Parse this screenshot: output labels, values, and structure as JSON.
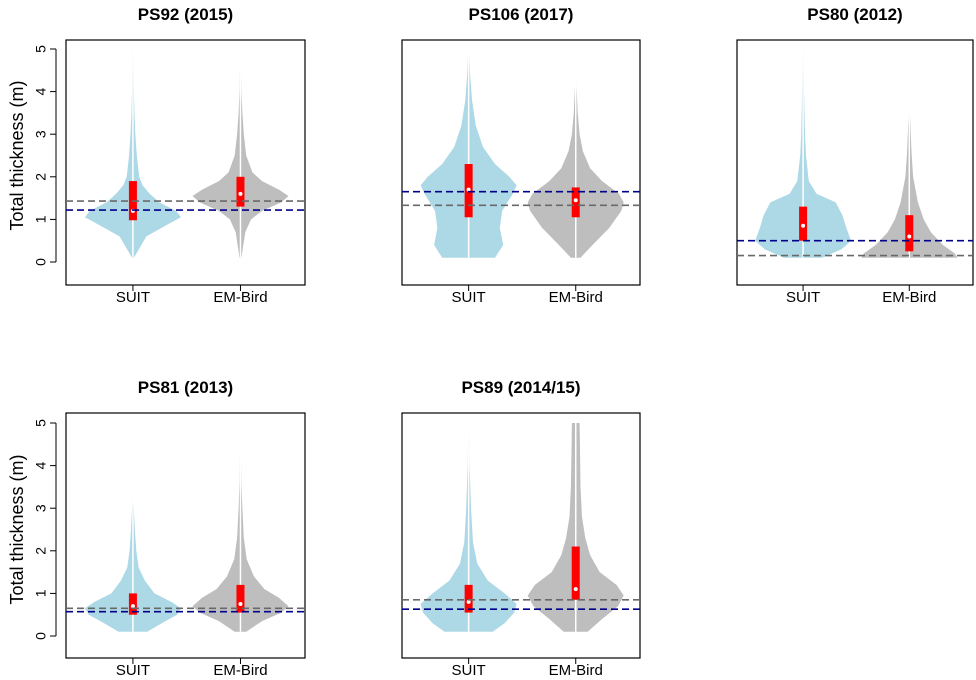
{
  "colors": {
    "suit_fill": "#add8e6",
    "embird_fill": "#bebebe",
    "box_fill": "#ff0000",
    "whisker": "#ffffff",
    "median_point": "#ffffff",
    "line_blue": "#00008b",
    "line_gray": "#696969"
  },
  "chart_data": [
    {
      "type": "violin",
      "title": "PS92 (2015)",
      "ylabel": "Total thickness (m)",
      "ylim": [
        0,
        5
      ],
      "yticks": [
        0,
        1,
        2,
        3,
        4,
        5
      ],
      "show_yaxis": true,
      "categories": [
        "SUIT",
        "EM-Bird"
      ],
      "series": [
        {
          "name": "SUIT",
          "min": 0.1,
          "max": 5.0,
          "q1": 0.98,
          "median": 1.2,
          "q3": 1.9,
          "density": [
            [
              0.1,
              0.02
            ],
            [
              0.6,
              0.28
            ],
            [
              0.9,
              0.75
            ],
            [
              1.05,
              1.0
            ],
            [
              1.2,
              0.9
            ],
            [
              1.4,
              0.55
            ],
            [
              1.6,
              0.35
            ],
            [
              1.8,
              0.2
            ],
            [
              2.0,
              0.13
            ],
            [
              2.5,
              0.08
            ],
            [
              3.0,
              0.05
            ],
            [
              3.5,
              0.03
            ],
            [
              4.0,
              0.02
            ],
            [
              5.0,
              0.01
            ]
          ]
        },
        {
          "name": "EM-Bird",
          "min": 0.1,
          "max": 4.6,
          "q1": 1.3,
          "median": 1.6,
          "q3": 2.0,
          "density": [
            [
              0.1,
              0.02
            ],
            [
              0.7,
              0.1
            ],
            [
              1.0,
              0.22
            ],
            [
              1.2,
              0.45
            ],
            [
              1.4,
              0.85
            ],
            [
              1.55,
              1.0
            ],
            [
              1.7,
              0.8
            ],
            [
              1.9,
              0.45
            ],
            [
              2.1,
              0.25
            ],
            [
              2.5,
              0.12
            ],
            [
              3.0,
              0.07
            ],
            [
              3.5,
              0.04
            ],
            [
              4.0,
              0.02
            ],
            [
              4.6,
              0.01
            ]
          ]
        }
      ],
      "hlines": [
        {
          "color": "line_gray",
          "y": 1.43
        },
        {
          "color": "line_blue",
          "y": 1.22
        }
      ]
    },
    {
      "type": "violin",
      "title": "PS106 (2017)",
      "ylabel": "",
      "ylim": [
        0,
        5
      ],
      "yticks": [
        0,
        1,
        2,
        3,
        4,
        5
      ],
      "show_yaxis": false,
      "categories": [
        "SUIT",
        "EM-Bird"
      ],
      "series": [
        {
          "name": "SUIT",
          "min": 0.1,
          "max": 5.0,
          "q1": 1.05,
          "median": 1.7,
          "q3": 2.3,
          "density": [
            [
              0.1,
              0.55
            ],
            [
              0.4,
              0.72
            ],
            [
              0.8,
              0.65
            ],
            [
              1.2,
              0.7
            ],
            [
              1.6,
              0.92
            ],
            [
              1.8,
              1.0
            ],
            [
              2.0,
              0.85
            ],
            [
              2.3,
              0.55
            ],
            [
              2.7,
              0.3
            ],
            [
              3.2,
              0.15
            ],
            [
              3.8,
              0.07
            ],
            [
              4.4,
              0.03
            ],
            [
              5.0,
              0.01
            ]
          ]
        },
        {
          "name": "EM-Bird",
          "min": 0.1,
          "max": 4.3,
          "q1": 1.05,
          "median": 1.45,
          "q3": 1.75,
          "density": [
            [
              0.1,
              0.1
            ],
            [
              0.4,
              0.35
            ],
            [
              0.8,
              0.7
            ],
            [
              1.2,
              0.95
            ],
            [
              1.4,
              1.0
            ],
            [
              1.6,
              0.9
            ],
            [
              1.9,
              0.55
            ],
            [
              2.2,
              0.3
            ],
            [
              2.6,
              0.15
            ],
            [
              3.0,
              0.08
            ],
            [
              3.5,
              0.04
            ],
            [
              4.3,
              0.01
            ]
          ]
        }
      ],
      "hlines": [
        {
          "color": "line_blue",
          "y": 1.65
        },
        {
          "color": "line_gray",
          "y": 1.33
        }
      ]
    },
    {
      "type": "violin",
      "title": "PS80 (2012)",
      "ylabel": "",
      "ylim": [
        0,
        5
      ],
      "yticks": [
        0,
        1,
        2,
        3,
        4,
        5
      ],
      "show_yaxis": false,
      "categories": [
        "SUIT",
        "EM-Bird"
      ],
      "series": [
        {
          "name": "SUIT",
          "min": 0.1,
          "max": 5.0,
          "q1": 0.5,
          "median": 0.85,
          "q3": 1.3,
          "density": [
            [
              0.1,
              0.4
            ],
            [
              0.3,
              0.8
            ],
            [
              0.5,
              1.0
            ],
            [
              0.8,
              0.9
            ],
            [
              1.1,
              0.82
            ],
            [
              1.4,
              0.68
            ],
            [
              1.6,
              0.28
            ],
            [
              1.9,
              0.12
            ],
            [
              2.5,
              0.06
            ],
            [
              3.0,
              0.04
            ],
            [
              4.0,
              0.02
            ],
            [
              5.0,
              0.01
            ]
          ]
        },
        {
          "name": "EM-Bird",
          "min": 0.1,
          "max": 3.6,
          "q1": 0.25,
          "median": 0.6,
          "q3": 1.1,
          "density": [
            [
              0.1,
              1.0
            ],
            [
              0.2,
              0.95
            ],
            [
              0.4,
              0.7
            ],
            [
              0.7,
              0.45
            ],
            [
              1.0,
              0.3
            ],
            [
              1.4,
              0.18
            ],
            [
              2.0,
              0.08
            ],
            [
              2.5,
              0.05
            ],
            [
              3.0,
              0.03
            ],
            [
              3.6,
              0.01
            ]
          ]
        }
      ],
      "hlines": [
        {
          "color": "line_blue",
          "y": 0.5
        },
        {
          "color": "line_gray",
          "y": 0.15
        }
      ]
    },
    {
      "type": "violin",
      "title": "PS81 (2013)",
      "ylabel": "Total thickness (m)",
      "ylim": [
        0,
        5
      ],
      "yticks": [
        0,
        1,
        2,
        3,
        4,
        5
      ],
      "show_yaxis": true,
      "categories": [
        "SUIT",
        "EM-Bird"
      ],
      "series": [
        {
          "name": "SUIT",
          "min": 0.1,
          "max": 3.2,
          "q1": 0.5,
          "median": 0.7,
          "q3": 1.0,
          "density": [
            [
              0.1,
              0.3
            ],
            [
              0.3,
              0.6
            ],
            [
              0.5,
              0.92
            ],
            [
              0.65,
              1.0
            ],
            [
              0.8,
              0.8
            ],
            [
              1.0,
              0.45
            ],
            [
              1.3,
              0.25
            ],
            [
              1.6,
              0.12
            ],
            [
              2.0,
              0.07
            ],
            [
              2.5,
              0.04
            ],
            [
              3.2,
              0.01
            ]
          ]
        },
        {
          "name": "EM-Bird",
          "min": 0.1,
          "max": 4.3,
          "q1": 0.55,
          "median": 0.75,
          "q3": 1.2,
          "density": [
            [
              0.1,
              0.12
            ],
            [
              0.35,
              0.45
            ],
            [
              0.55,
              0.85
            ],
            [
              0.7,
              1.0
            ],
            [
              0.9,
              0.8
            ],
            [
              1.1,
              0.5
            ],
            [
              1.4,
              0.28
            ],
            [
              1.8,
              0.13
            ],
            [
              2.3,
              0.07
            ],
            [
              3.0,
              0.04
            ],
            [
              3.6,
              0.02
            ],
            [
              4.3,
              0.01
            ]
          ]
        }
      ],
      "hlines": [
        {
          "color": "line_gray",
          "y": 0.65
        },
        {
          "color": "line_blue",
          "y": 0.57
        }
      ]
    },
    {
      "type": "violin",
      "title": "PS89 (2014/15)",
      "ylabel": "",
      "ylim": [
        0,
        5
      ],
      "yticks": [
        0,
        1,
        2,
        3,
        4,
        5
      ],
      "show_yaxis": false,
      "categories": [
        "SUIT",
        "EM-Bird"
      ],
      "series": [
        {
          "name": "SUIT",
          "min": 0.1,
          "max": 5.0,
          "q1": 0.55,
          "median": 0.8,
          "q3": 1.2,
          "density": [
            [
              0.1,
              0.5
            ],
            [
              0.3,
              0.75
            ],
            [
              0.55,
              0.95
            ],
            [
              0.75,
              1.0
            ],
            [
              1.0,
              0.75
            ],
            [
              1.3,
              0.4
            ],
            [
              1.7,
              0.18
            ],
            [
              2.2,
              0.09
            ],
            [
              3.0,
              0.05
            ],
            [
              4.0,
              0.02
            ],
            [
              5.0,
              0.01
            ]
          ]
        },
        {
          "name": "EM-Bird",
          "min": 0.1,
          "max": 5.0,
          "q1": 0.85,
          "median": 1.1,
          "q3": 2.1,
          "density": [
            [
              0.1,
              0.25
            ],
            [
              0.4,
              0.55
            ],
            [
              0.7,
              0.88
            ],
            [
              0.95,
              1.0
            ],
            [
              1.2,
              0.85
            ],
            [
              1.5,
              0.5
            ],
            [
              1.9,
              0.3
            ],
            [
              2.3,
              0.2
            ],
            [
              2.8,
              0.13
            ],
            [
              3.5,
              0.1
            ],
            [
              4.2,
              0.09
            ],
            [
              5.0,
              0.08
            ]
          ]
        }
      ],
      "hlines": [
        {
          "color": "line_gray",
          "y": 0.85
        },
        {
          "color": "line_blue",
          "y": 0.63
        }
      ]
    }
  ]
}
